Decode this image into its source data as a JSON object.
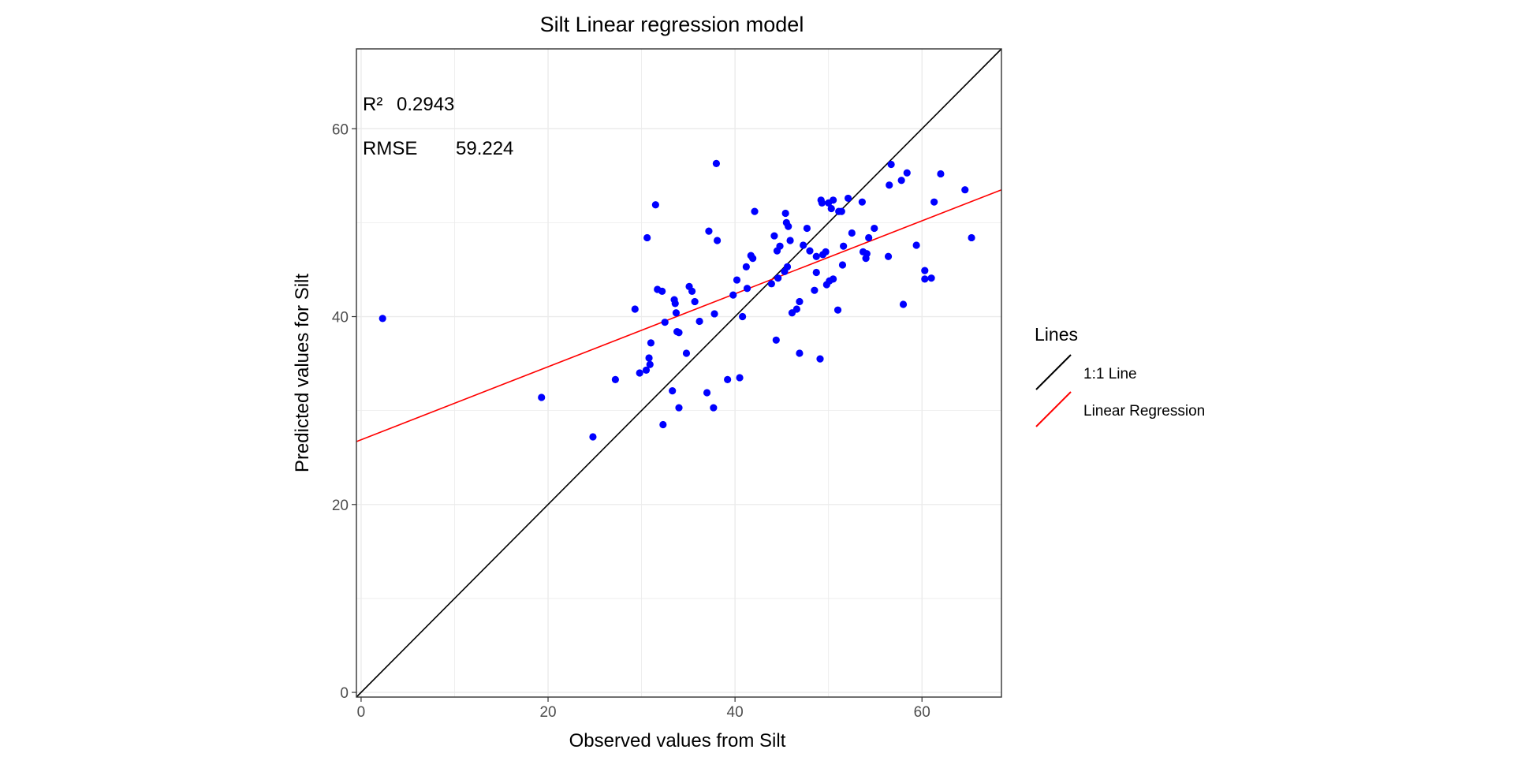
{
  "chart_data": {
    "type": "scatter",
    "title": "Silt  Linear regression model",
    "xlabel": "Observed values from Silt",
    "ylabel": "Predicted values for Silt",
    "xlim": [
      -0.5,
      68.5
    ],
    "ylim": [
      -0.5,
      68.5
    ],
    "x_ticks": [
      0,
      20,
      40,
      60
    ],
    "y_ticks": [
      0,
      20,
      40,
      60
    ],
    "grid": true,
    "annotations": {
      "r2_label": "R²",
      "r2_value": "0.2943",
      "rmse_label": "RMSE",
      "rmse_value": "59.224"
    },
    "legend": {
      "title": "Lines",
      "position": "right",
      "items": [
        {
          "label": "1:1 Line",
          "color": "#000000"
        },
        {
          "label": "Linear Regression",
          "color": "#ff0000"
        }
      ]
    },
    "lines": [
      {
        "name": "1:1 Line",
        "color": "#000000",
        "x": [
          -0.5,
          68.5
        ],
        "y": [
          -0.5,
          68.5
        ]
      },
      {
        "name": "Linear Regression",
        "color": "#ff0000",
        "x": [
          -0.5,
          68.5
        ],
        "y": [
          26.7,
          53.5
        ]
      }
    ],
    "series": [
      {
        "color": "#0000ff",
        "points": [
          [
            2.3,
            39.8
          ],
          [
            19.3,
            31.4
          ],
          [
            24.8,
            27.2
          ],
          [
            27.2,
            33.3
          ],
          [
            29.3,
            40.8
          ],
          [
            29.8,
            34.0
          ],
          [
            30.5,
            34.3
          ],
          [
            30.6,
            48.4
          ],
          [
            30.8,
            35.6
          ],
          [
            30.9,
            34.9
          ],
          [
            31.0,
            37.2
          ],
          [
            31.5,
            51.9
          ],
          [
            31.7,
            42.9
          ],
          [
            32.2,
            42.7
          ],
          [
            32.3,
            28.5
          ],
          [
            32.5,
            39.4
          ],
          [
            33.3,
            32.1
          ],
          [
            33.5,
            41.8
          ],
          [
            33.6,
            41.4
          ],
          [
            33.7,
            40.4
          ],
          [
            33.8,
            38.4
          ],
          [
            34.0,
            30.3
          ],
          [
            34.0,
            38.3
          ],
          [
            34.8,
            36.1
          ],
          [
            35.1,
            43.2
          ],
          [
            35.4,
            42.7
          ],
          [
            35.7,
            41.6
          ],
          [
            36.2,
            39.5
          ],
          [
            37.0,
            31.9
          ],
          [
            37.2,
            49.1
          ],
          [
            37.7,
            30.3
          ],
          [
            37.8,
            40.3
          ],
          [
            38.0,
            56.3
          ],
          [
            38.1,
            48.1
          ],
          [
            39.2,
            33.3
          ],
          [
            39.8,
            42.3
          ],
          [
            40.2,
            43.9
          ],
          [
            40.5,
            33.5
          ],
          [
            40.8,
            40.0
          ],
          [
            41.2,
            45.3
          ],
          [
            41.3,
            43.0
          ],
          [
            41.7,
            46.5
          ],
          [
            41.9,
            46.2
          ],
          [
            42.1,
            51.2
          ],
          [
            43.9,
            43.5
          ],
          [
            44.2,
            48.6
          ],
          [
            44.4,
            37.5
          ],
          [
            44.5,
            47.0
          ],
          [
            44.6,
            44.1
          ],
          [
            44.8,
            47.5
          ],
          [
            45.3,
            44.8
          ],
          [
            45.4,
            51.0
          ],
          [
            45.5,
            50.0
          ],
          [
            45.6,
            45.3
          ],
          [
            45.7,
            49.6
          ],
          [
            45.9,
            48.1
          ],
          [
            46.1,
            40.4
          ],
          [
            46.6,
            40.8
          ],
          [
            46.9,
            41.6
          ],
          [
            46.9,
            36.1
          ],
          [
            47.3,
            47.6
          ],
          [
            47.7,
            49.4
          ],
          [
            48.0,
            47.0
          ],
          [
            48.5,
            42.8
          ],
          [
            48.7,
            44.7
          ],
          [
            48.7,
            46.4
          ],
          [
            49.1,
            35.5
          ],
          [
            49.2,
            52.4
          ],
          [
            49.3,
            52.1
          ],
          [
            49.4,
            46.6
          ],
          [
            49.7,
            46.9
          ],
          [
            49.8,
            43.4
          ],
          [
            50.0,
            52.1
          ],
          [
            50.1,
            43.8
          ],
          [
            50.3,
            51.5
          ],
          [
            50.5,
            52.4
          ],
          [
            50.5,
            44.0
          ],
          [
            51.0,
            40.7
          ],
          [
            51.1,
            51.2
          ],
          [
            51.4,
            51.2
          ],
          [
            51.5,
            45.5
          ],
          [
            51.6,
            47.5
          ],
          [
            52.1,
            52.6
          ],
          [
            52.5,
            48.9
          ],
          [
            53.6,
            52.2
          ],
          [
            53.7,
            46.9
          ],
          [
            54.0,
            46.2
          ],
          [
            54.1,
            46.7
          ],
          [
            54.3,
            48.4
          ],
          [
            54.9,
            49.4
          ],
          [
            56.4,
            46.4
          ],
          [
            56.5,
            54.0
          ],
          [
            56.7,
            56.2
          ],
          [
            57.8,
            54.5
          ],
          [
            58.0,
            41.3
          ],
          [
            58.4,
            55.3
          ],
          [
            59.4,
            47.6
          ],
          [
            60.3,
            44.9
          ],
          [
            60.3,
            44.0
          ],
          [
            61.0,
            44.1
          ],
          [
            61.3,
            52.2
          ],
          [
            62.0,
            55.2
          ],
          [
            64.6,
            53.5
          ],
          [
            65.3,
            48.4
          ]
        ]
      }
    ]
  }
}
